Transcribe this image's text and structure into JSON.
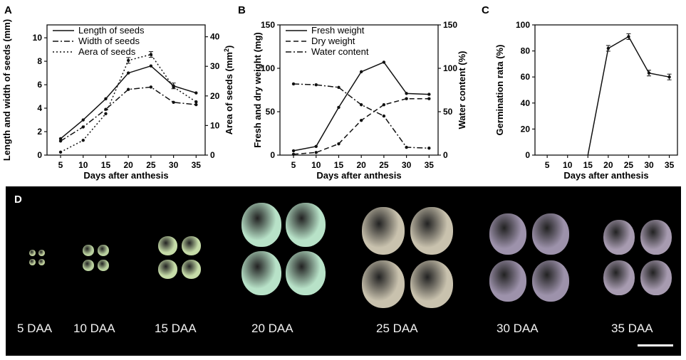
{
  "panels": {
    "A": "A",
    "B": "B",
    "C": "C",
    "D": "D"
  },
  "chart_data": [
    {
      "type": "line",
      "panel": "A",
      "xlabel": "Days after anthesis",
      "ylabel": "Length and width of seeds (mm)",
      "y2label": "Area of seeds (mm",
      "y2label_sup": "2",
      "y2label_end": ")",
      "x": [
        5,
        10,
        15,
        20,
        25,
        30,
        35
      ],
      "xlim": [
        2,
        37
      ],
      "ylim": [
        0,
        11.1
      ],
      "y2lim": [
        0,
        44
      ],
      "xticks": [
        5,
        10,
        15,
        20,
        25,
        30,
        35
      ],
      "yticks": [
        0,
        2,
        4,
        6,
        8,
        10
      ],
      "y2ticks": [
        0,
        10,
        20,
        30,
        40
      ],
      "legend_position": "top-left",
      "series": [
        {
          "name": "Length of seeds",
          "axis": "left",
          "style": "solid",
          "values": [
            1.4,
            3.0,
            4.8,
            7.0,
            7.6,
            5.9,
            5.3
          ]
        },
        {
          "name": "Width of seeds",
          "axis": "left",
          "style": "dashdot",
          "values": [
            1.2,
            2.4,
            3.9,
            5.6,
            5.8,
            4.5,
            4.3
          ]
        },
        {
          "name": "Aera of seeds",
          "axis": "right",
          "style": "dotted",
          "values": [
            1,
            5,
            14,
            32,
            34,
            23,
            18
          ]
        }
      ]
    },
    {
      "type": "line",
      "panel": "B",
      "xlabel": "Days after anthesis",
      "ylabel": "Fresh and  dry weight (mg)",
      "y2label": "Water content (%)",
      "x": [
        5,
        10,
        15,
        20,
        25,
        30,
        35
      ],
      "xlim": [
        2,
        37
      ],
      "ylim": [
        0,
        150
      ],
      "y2lim": [
        0,
        150
      ],
      "xticks": [
        5,
        10,
        15,
        20,
        25,
        30,
        35
      ],
      "yticks": [
        0,
        50,
        100,
        150
      ],
      "y2ticks": [
        0,
        50,
        100,
        150
      ],
      "legend_position": "top-left",
      "series": [
        {
          "name": "Fresh weight",
          "axis": "left",
          "style": "solid",
          "values": [
            5,
            10,
            55,
            96,
            107,
            71,
            70
          ]
        },
        {
          "name": "Dry weight",
          "axis": "left",
          "style": "dashed",
          "values": [
            1,
            3,
            13,
            40,
            58,
            65,
            65
          ]
        },
        {
          "name": "Water content",
          "axis": "right",
          "style": "dashdot",
          "values": [
            82,
            81,
            78,
            58,
            45,
            9,
            8
          ]
        }
      ]
    },
    {
      "type": "line",
      "panel": "C",
      "xlabel": "Days after anthesis",
      "ylabel": "Germination rata (%)",
      "x": [
        5,
        10,
        15,
        20,
        25,
        30,
        35
      ],
      "xlim": [
        2,
        37
      ],
      "ylim": [
        0,
        100
      ],
      "xticks": [
        5,
        10,
        15,
        20,
        25,
        30,
        35
      ],
      "yticks": [
        0,
        20,
        40,
        60,
        80,
        100
      ],
      "series": [
        {
          "name": "",
          "axis": "left",
          "style": "solid",
          "values": [
            0,
            0,
            0,
            82,
            91,
            63,
            60
          ],
          "visible_from_index": 2
        }
      ]
    }
  ],
  "photo": {
    "labels": [
      "5 DAA",
      "10 DAA",
      "15 DAA",
      "20 DAA",
      "25 DAA",
      "30 DAA",
      "35 DAA"
    ],
    "seed_colors": [
      "#bfcf9c",
      "#b9d09e",
      "#c6dca8",
      "#b8e2c8",
      "#c9c2ae",
      "#9d92ab",
      "#a79bb0"
    ]
  }
}
